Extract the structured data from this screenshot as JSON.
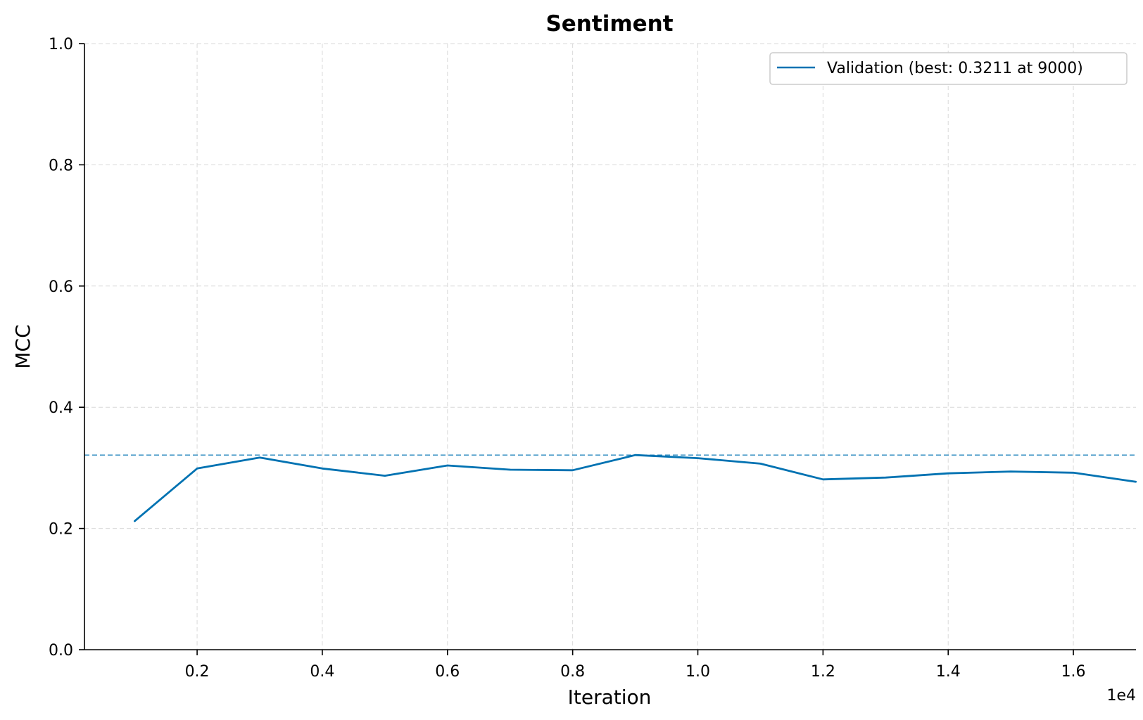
{
  "chart_data": {
    "type": "line",
    "title": "Sentiment",
    "xlabel": "Iteration",
    "ylabel": "MCC",
    "x_offset_label": "1e4",
    "xlim": [
      200,
      17000
    ],
    "ylim": [
      0.0,
      1.0
    ],
    "x_ticks": [
      2000,
      4000,
      6000,
      8000,
      10000,
      12000,
      14000,
      16000
    ],
    "x_tick_labels": [
      "0.2",
      "0.4",
      "0.6",
      "0.8",
      "1.0",
      "1.2",
      "1.4",
      "1.6"
    ],
    "y_ticks": [
      0.0,
      0.2,
      0.4,
      0.6,
      0.8,
      1.0
    ],
    "y_tick_labels": [
      "0.0",
      "0.2",
      "0.4",
      "0.6",
      "0.8",
      "1.0"
    ],
    "grid": true,
    "legend_position": "top-right",
    "series": [
      {
        "name": "Validation (best: 0.3211 at 9000)",
        "color": "#0072B2",
        "x": [
          1000,
          2000,
          3000,
          4000,
          5000,
          6000,
          7000,
          8000,
          9000,
          10000,
          11000,
          12000,
          13000,
          14000,
          15000,
          16000,
          17000
        ],
        "y": [
          0.212,
          0.299,
          0.317,
          0.299,
          0.287,
          0.304,
          0.297,
          0.296,
          0.3211,
          0.316,
          0.307,
          0.281,
          0.284,
          0.291,
          0.294,
          0.292,
          0.277
        ]
      }
    ],
    "reference_line": {
      "y": 0.3211,
      "color": "#0072B2",
      "style": "dashed"
    }
  }
}
